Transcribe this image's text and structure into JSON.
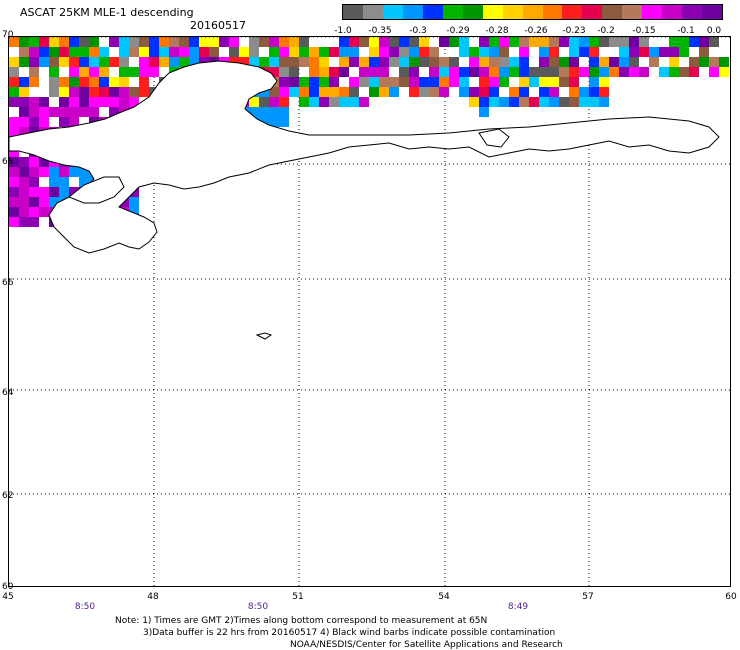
{
  "header": {
    "title": "ASCAT 25KM MLE-1 descending",
    "date": "20160517"
  },
  "colorbar": {
    "colors": [
      "#5a5a5a",
      "#8c8c8c",
      "#00c8ff",
      "#0096ff",
      "#0032ff",
      "#00b400",
      "#009600",
      "#ffff00",
      "#ffd200",
      "#ffaa00",
      "#ff7800",
      "#ff1e1e",
      "#e60050",
      "#8c5a3c",
      "#b4785a",
      "#ff00ff",
      "#c800c8",
      "#8c00b4",
      "#6e00a0"
    ],
    "labels": [
      "-1.0",
      "-0.35",
      "-0.3",
      "-0.29",
      "-0.28",
      "-0.26",
      "-0.23",
      "-0.2",
      "-0.15",
      "-0.1",
      "0.0"
    ]
  },
  "axes": {
    "lat_labels": [
      "70",
      "68",
      "66",
      "64",
      "62",
      "60"
    ],
    "lon_labels": [
      "45",
      "48",
      "51",
      "54",
      "57",
      "60"
    ],
    "time_labels": [
      "8:50",
      "8:50",
      "8:49"
    ]
  },
  "notes": {
    "line1": "Note: 1) Times are GMT 2)Times along bottom correspond to measurement at 65N",
    "line2": "3)Data buffer is 22 hrs from 20160517 4) Black wind barbs indicate possible contamination",
    "line3": "NOAA/NESDIS/Center for Satellite Applications and Research"
  }
}
